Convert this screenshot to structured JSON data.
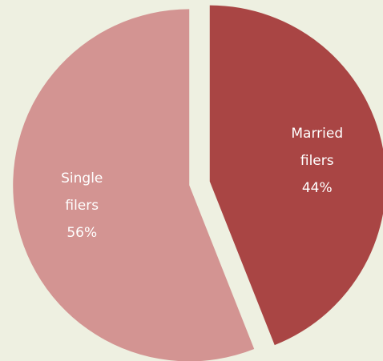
{
  "chart_data": {
    "type": "pie",
    "categories": [
      "Married filers",
      "Single filers"
    ],
    "values": [
      44,
      56
    ],
    "value_labels": [
      "44%",
      "56%"
    ],
    "colors": [
      "#a94544",
      "#d39492"
    ],
    "exploded": true
  }
}
